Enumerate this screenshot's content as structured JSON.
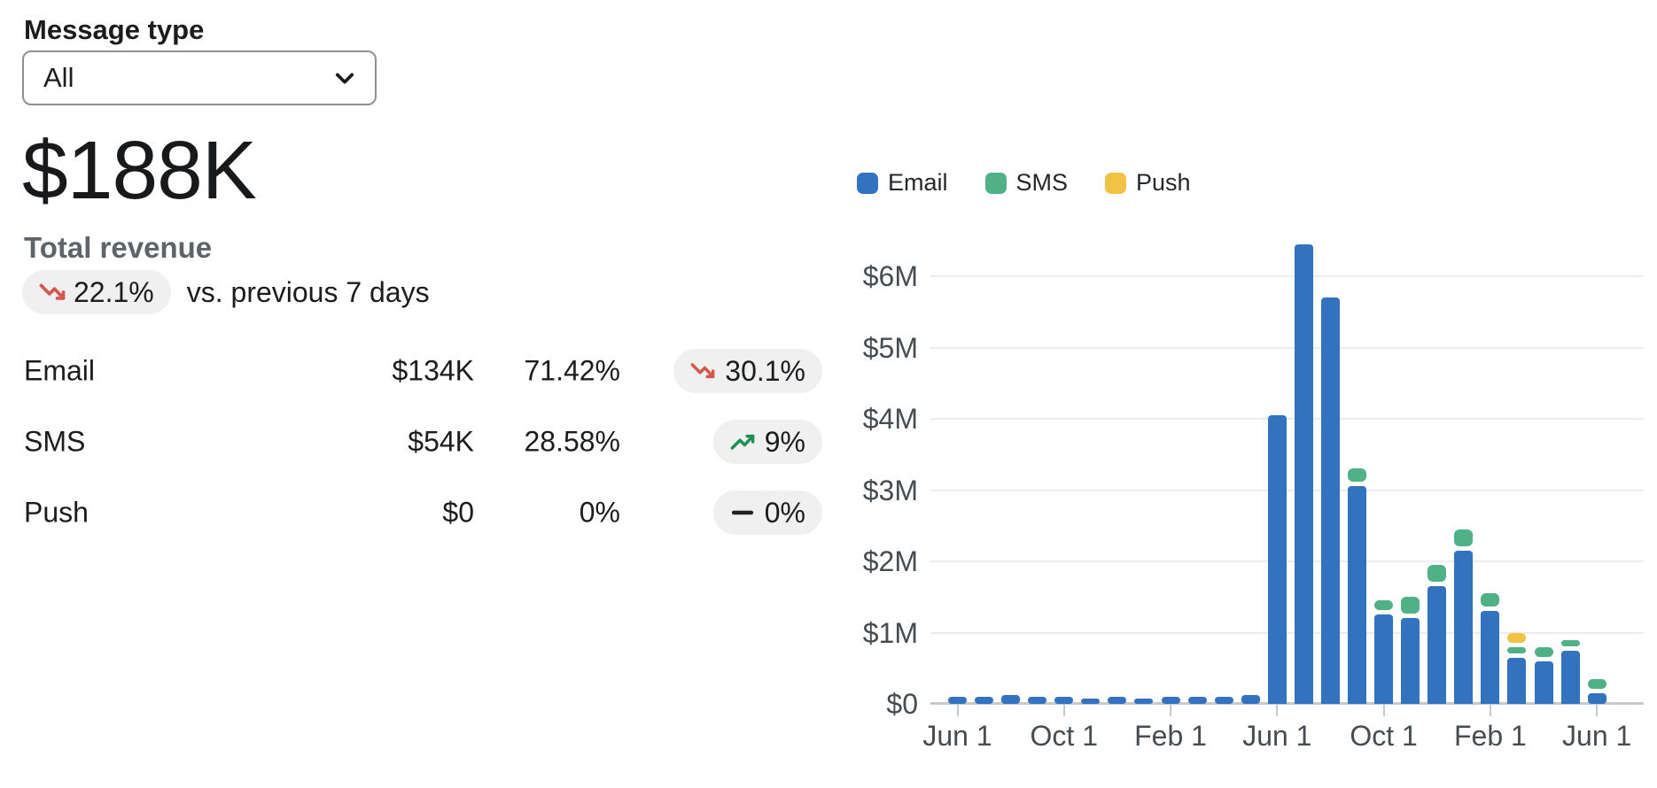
{
  "filter": {
    "label": "Message type",
    "value": "All"
  },
  "hero": {
    "value": "$188K",
    "label": "Total revenue",
    "delta": "22.1%",
    "delta_direction": "down",
    "compare": "vs. previous 7 days"
  },
  "breakdown": {
    "rows": [
      {
        "name": "Email",
        "value": "$134K",
        "share": "71.42%",
        "delta": "30.1%",
        "direction": "down"
      },
      {
        "name": "SMS",
        "value": "$54K",
        "share": "28.58%",
        "delta": "9%",
        "direction": "up"
      },
      {
        "name": "Push",
        "value": "$0",
        "share": "0%",
        "delta": "0%",
        "direction": "flat"
      }
    ]
  },
  "legend": [
    {
      "label": "Email",
      "color_key": "email"
    },
    {
      "label": "SMS",
      "color_key": "sms"
    },
    {
      "label": "Push",
      "color_key": "push"
    }
  ],
  "colors": {
    "email": "#3372be",
    "sms": "#4fb185",
    "push": "#f0c344",
    "trend_down": "#d5584e",
    "trend_up": "#1f8f56",
    "trend_flat": "#202223",
    "pill_bg": "#f0f0f1",
    "grid": "#ecedee",
    "axis": "#c6cacd",
    "axis_label": "#474c51"
  },
  "chart_data": {
    "type": "bar",
    "stacked": true,
    "unit": "millions_usd",
    "grid": true,
    "legend_position": "top",
    "ylim_millions": [
      0,
      6.6
    ],
    "y_tick_labels": [
      "$0",
      "$1M",
      "$2M",
      "$3M",
      "$4M",
      "$5M",
      "$6M"
    ],
    "x_tick_labels": [
      "Jun 1",
      "Oct 1",
      "Feb 1",
      "Jun 1",
      "Oct 1",
      "Feb 1",
      "Jun 1"
    ],
    "x_tick_month_index": [
      0,
      4,
      8,
      12,
      16,
      20,
      24
    ],
    "series": [
      {
        "name": "Email",
        "color_key": "email",
        "values_millions": [
          0.1,
          0.1,
          0.12,
          0.1,
          0.1,
          0.08,
          0.1,
          0.08,
          0.1,
          0.1,
          0.1,
          0.12,
          4.05,
          6.45,
          5.7,
          3.05,
          1.25,
          1.2,
          1.65,
          2.15,
          1.3,
          0.65,
          0.6,
          0.75,
          0.15
        ]
      },
      {
        "name": "SMS",
        "color_key": "sms",
        "values_millions": [
          0,
          0,
          0,
          0,
          0,
          0,
          0,
          0,
          0,
          0,
          0,
          0,
          0,
          0,
          0,
          0.25,
          0.2,
          0.3,
          0.3,
          0.3,
          0.25,
          0.15,
          0.2,
          0.15,
          0.2
        ]
      },
      {
        "name": "Push",
        "color_key": "push",
        "values_millions": [
          0,
          0,
          0,
          0,
          0,
          0,
          0,
          0,
          0,
          0,
          0,
          0,
          0,
          0,
          0,
          0,
          0,
          0,
          0,
          0,
          0,
          0.2,
          0,
          0,
          0
        ]
      }
    ]
  }
}
